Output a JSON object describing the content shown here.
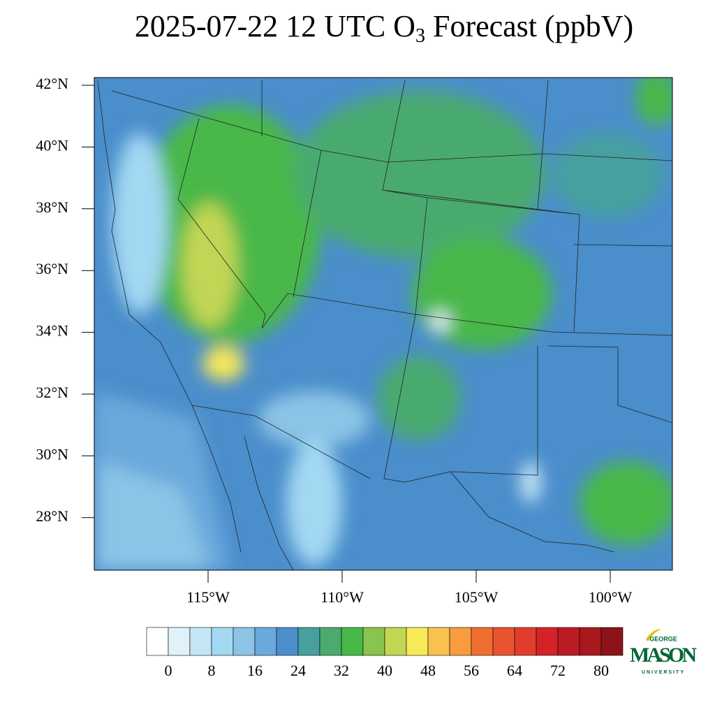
{
  "map": {
    "title": {
      "prefix": "2025-07-22 12 UTC O",
      "subscript": "3",
      "suffix": " Forecast (ppbV)"
    },
    "lat_ticks": [
      {
        "value": 42,
        "label": "42°N"
      },
      {
        "value": 40,
        "label": "40°N"
      },
      {
        "value": 38,
        "label": "38°N"
      },
      {
        "value": 36,
        "label": "36°N"
      },
      {
        "value": 34,
        "label": "34°N"
      },
      {
        "value": 32,
        "label": "32°N"
      },
      {
        "value": 30,
        "label": "30°N"
      },
      {
        "value": 28,
        "label": "28°N"
      }
    ],
    "lon_ticks": [
      {
        "value": -115,
        "label": "115°W"
      },
      {
        "value": -110,
        "label": "110°W"
      },
      {
        "value": -105,
        "label": "105°W"
      },
      {
        "value": -100,
        "label": "100°W"
      }
    ],
    "colorbar": {
      "colors": [
        "#ffffff",
        "#e1f1fa",
        "#c4e6f7",
        "#a3d8f3",
        "#8cc4e6",
        "#6ba9dc",
        "#4a8ecb",
        "#47a09f",
        "#4aaa70",
        "#48b848",
        "#88c44e",
        "#c2d654",
        "#f9e858",
        "#f9c24e",
        "#f89c3e",
        "#f26e30",
        "#e95430",
        "#e23c2c",
        "#d42228",
        "#bb1c24",
        "#a8181e",
        "#8c1418"
      ],
      "ticks": [
        0,
        8,
        16,
        24,
        32,
        40,
        48,
        56,
        64,
        72,
        80
      ]
    },
    "logo": {
      "top": "GEORGE",
      "main": "MASON",
      "bottom": "UNIVERSITY"
    }
  }
}
